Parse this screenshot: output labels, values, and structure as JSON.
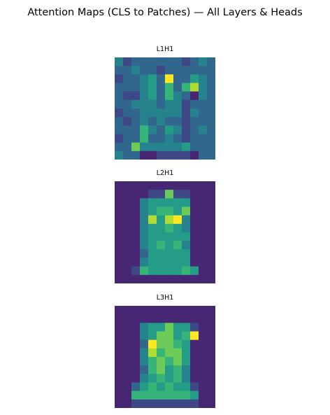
{
  "figure": {
    "title": "Attention Maps (CLS to Patches) — All Layers & Heads"
  },
  "chart_data": [
    {
      "type": "heatmap",
      "title": "L1H1",
      "colormap": "viridis",
      "axes_visible": false,
      "vmin": 0,
      "vmax": 9,
      "values": [
        [
          4,
          2,
          3,
          3,
          3,
          3,
          3,
          3,
          2,
          3,
          4,
          3
        ],
        [
          3,
          3,
          4,
          3,
          3,
          2,
          3,
          3,
          3,
          3,
          3,
          3
        ],
        [
          2,
          3,
          3,
          4,
          5,
          3,
          9,
          3,
          3,
          5,
          4,
          3
        ],
        [
          3,
          3,
          3,
          4,
          5,
          3,
          6,
          3,
          6,
          8,
          4,
          3
        ],
        [
          3,
          2,
          2,
          4,
          5,
          3,
          6,
          4,
          3,
          1,
          4,
          3
        ],
        [
          3,
          3,
          4,
          4,
          4,
          3,
          4,
          4,
          2,
          3,
          3,
          3
        ],
        [
          2,
          3,
          3,
          4,
          4,
          4,
          4,
          4,
          2,
          4,
          3,
          3
        ],
        [
          3,
          2,
          3,
          4,
          3,
          4,
          3,
          3,
          2,
          3,
          3,
          3
        ],
        [
          3,
          3,
          3,
          6,
          4,
          3,
          5,
          4,
          2,
          3,
          4,
          3
        ],
        [
          2,
          3,
          3,
          6,
          3,
          3,
          4,
          3,
          2,
          3,
          3,
          3
        ],
        [
          3,
          3,
          7,
          4,
          4,
          4,
          4,
          4,
          5,
          3,
          3,
          3
        ],
        [
          4,
          3,
          3,
          1,
          1,
          2,
          2,
          2,
          2,
          1,
          3,
          3
        ]
      ]
    },
    {
      "type": "heatmap",
      "title": "L2H1",
      "colormap": "viridis",
      "axes_visible": false,
      "vmin": 0,
      "vmax": 9,
      "values": [
        [
          1,
          1,
          1,
          1,
          1,
          1,
          1,
          1,
          1,
          1,
          1,
          1
        ],
        [
          1,
          1,
          1,
          1,
          2,
          2,
          7,
          2,
          2,
          1,
          1,
          1
        ],
        [
          1,
          1,
          1,
          4,
          5,
          5,
          5,
          5,
          5,
          1,
          1,
          1
        ],
        [
          1,
          1,
          1,
          4,
          5,
          6,
          6,
          5,
          7,
          1,
          1,
          1
        ],
        [
          1,
          1,
          1,
          4,
          8,
          5,
          8,
          9,
          4,
          1,
          1,
          1
        ],
        [
          1,
          1,
          1,
          4,
          5,
          5,
          6,
          5,
          4,
          1,
          1,
          1
        ],
        [
          1,
          1,
          1,
          4,
          5,
          5,
          5,
          5,
          5,
          1,
          1,
          1
        ],
        [
          1,
          1,
          1,
          4,
          5,
          6,
          5,
          6,
          4,
          1,
          1,
          1
        ],
        [
          1,
          1,
          1,
          3,
          5,
          5,
          5,
          5,
          5,
          1,
          1,
          1
        ],
        [
          1,
          1,
          1,
          4,
          5,
          5,
          5,
          5,
          5,
          1,
          1,
          1
        ],
        [
          1,
          1,
          2,
          6,
          5,
          5,
          5,
          5,
          6,
          5,
          1,
          1
        ],
        [
          1,
          1,
          1,
          1,
          1,
          1,
          1,
          1,
          1,
          1,
          1,
          1
        ]
      ]
    },
    {
      "type": "heatmap",
      "title": "L3H1",
      "colormap": "viridis",
      "axes_visible": false,
      "vmin": 0,
      "vmax": 9,
      "values": [
        [
          1,
          1,
          1,
          1,
          1,
          1,
          1,
          1,
          1,
          1,
          1,
          1
        ],
        [
          1,
          1,
          1,
          1,
          1,
          1,
          1,
          1,
          1,
          1,
          1,
          1
        ],
        [
          1,
          1,
          1,
          4,
          5,
          5,
          7,
          5,
          5,
          2,
          1,
          1
        ],
        [
          1,
          1,
          1,
          4,
          5,
          7,
          7,
          5,
          6,
          9,
          1,
          1
        ],
        [
          1,
          1,
          1,
          3,
          9,
          7,
          7,
          6,
          5,
          1,
          1,
          1
        ],
        [
          1,
          1,
          1,
          4,
          8,
          6,
          7,
          7,
          5,
          1,
          1,
          1
        ],
        [
          1,
          1,
          1,
          4,
          6,
          7,
          6,
          7,
          5,
          1,
          1,
          1
        ],
        [
          1,
          1,
          1,
          3,
          6,
          7,
          5,
          6,
          4,
          1,
          1,
          1
        ],
        [
          1,
          1,
          1,
          4,
          5,
          6,
          5,
          6,
          4,
          1,
          1,
          1
        ],
        [
          1,
          1,
          3,
          5,
          6,
          5,
          6,
          5,
          5,
          2,
          1,
          1
        ],
        [
          1,
          1,
          6,
          6,
          6,
          6,
          6,
          6,
          6,
          5,
          1,
          1
        ],
        [
          1,
          1,
          2,
          2,
          2,
          2,
          2,
          2,
          2,
          2,
          1,
          1
        ]
      ]
    }
  ]
}
